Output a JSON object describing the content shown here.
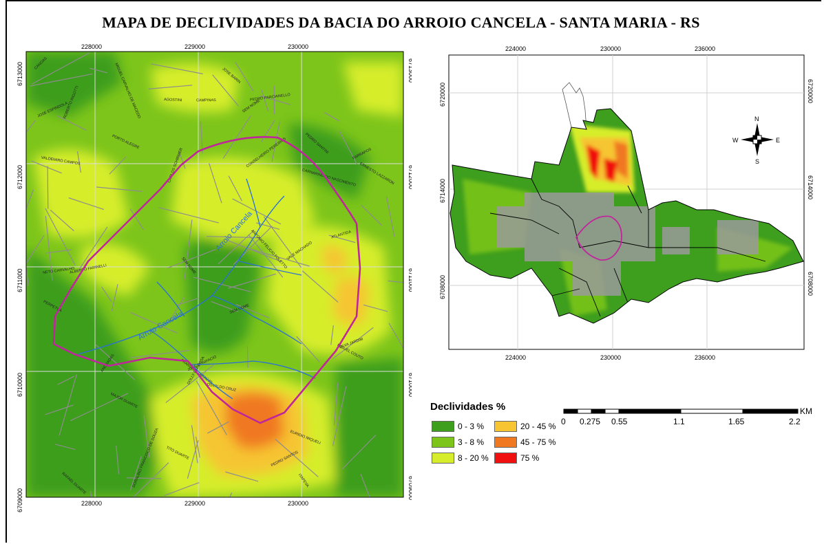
{
  "title": "MAPA DE DECLIVIDADES DA BACIA DO ARROIO CANCELA - SANTA MARIA - RS",
  "main_map": {
    "x_ticks": [
      "228000",
      "229000",
      "230000"
    ],
    "y_ticks": [
      "6712000",
      "6711000",
      "6710000"
    ],
    "y_ticks_edge": [
      "6713000",
      "6709000"
    ],
    "stream_labels": [
      "Arroio Cancela",
      "Arroio Cancela"
    ],
    "street_labels": [
      "SILVA JARDIM",
      "VALE MACHADO",
      "CARNARINO DO NASCIMENTO",
      "SEM NOME",
      "ALBERTO FARINELLI",
      "MAJOR DUARTE",
      "ANDRADAS",
      "DOLLY BARBOSA",
      "CARLOS SCHIRMER",
      "JOSE BONIFACIO",
      "NETO CARVALHO",
      "JOSE BARIN",
      "FRANCISCO ARAÚJO",
      "RAFAEL DUARTE",
      "FARRAPOS",
      "TITO DUARTE",
      "ATLANTIDA",
      "PEDRO SANTINI",
      "SEM NOME",
      "PEDRO PARCIANELLO",
      "AGOSTINI",
      "MIGUEL CARVALHO DE MACEDO",
      "CONSELHEIRO PEREIROS",
      "ERNESTO LAZZARON",
      "ANTONIO FELICIO FOLETTO",
      "ROBERTO RIGOTTI",
      "EURIDIO MIQUELI",
      "CANOAS",
      "DORALINO FRANCISCO DE SOUZA",
      "VALDEMIRO CAMPOS",
      "SEM NOME",
      "CAMPINAS",
      "PERPETUA",
      "PEDRO SANTOS",
      "MIGUEL COUTO",
      "JOSE ESPINDOLA",
      "OSVALDO CRUZ",
      "ITAPEVA",
      "PORTO ALEGRE"
    ]
  },
  "inset_map": {
    "x_ticks": [
      "224000",
      "230000",
      "236000"
    ],
    "y_ticks": [
      "6720000",
      "6714000",
      "6708000"
    ],
    "compass": {
      "n": "N",
      "s": "S",
      "e": "E",
      "w": "W"
    }
  },
  "legend": {
    "title": "Declividades %",
    "items": [
      {
        "label": "0 - 3 %",
        "color": "#3e9e1e"
      },
      {
        "label": "3 - 8 %",
        "color": "#7dc51b"
      },
      {
        "label": "8 - 20 %",
        "color": "#d6ed2b"
      },
      {
        "label": "20 - 45 %",
        "color": "#f6c531"
      },
      {
        "label": "45 - 75 %",
        "color": "#f07821"
      },
      {
        "label": "75 %",
        "color": "#f01010"
      }
    ]
  },
  "scale_bar": {
    "unit": "KM",
    "labels": [
      "0",
      "0.275",
      "0.55",
      "1.1",
      "1.65",
      "2.2"
    ]
  },
  "colors": {
    "basin_outline": "#c0269c",
    "stream": "#2a6fd8",
    "roads": "#8d8d8d",
    "grid": "#cfcfcf"
  }
}
